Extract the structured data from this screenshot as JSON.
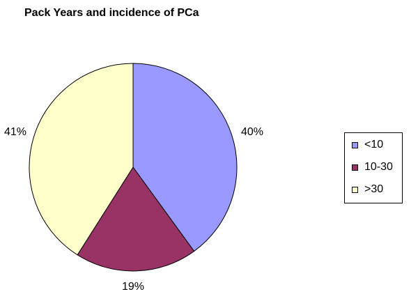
{
  "chart_data": {
    "type": "pie",
    "title": "Pack Years and incidence of PCa",
    "categories": [
      "<10",
      "10-30",
      ">30"
    ],
    "values": [
      40,
      19,
      41
    ],
    "data_labels": [
      "40%",
      "19%",
      "41%"
    ],
    "colors": [
      "#9999ff",
      "#993366",
      "#ffffcc"
    ],
    "legend_placement": "right"
  }
}
